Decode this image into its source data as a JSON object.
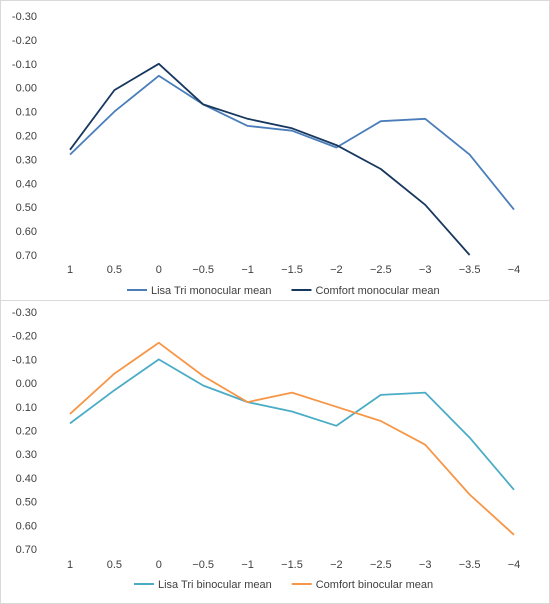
{
  "chart_data": [
    {
      "type": "line",
      "title": "",
      "xlabel": "",
      "ylabel": "",
      "categories": [
        "1",
        "0.5",
        "0",
        "−0.5",
        "−1",
        "−1.5",
        "−2",
        "−2.5",
        "−3",
        "−3.5",
        "−4"
      ],
      "y_ticks": [
        "-0.30",
        "-0.20",
        "-0.10",
        "0.00",
        "0.10",
        "0.20",
        "0.30",
        "0.40",
        "0.50",
        "0.60",
        "0.70"
      ],
      "ylim": [
        -0.3,
        0.7
      ],
      "y_inverted": true,
      "grid": false,
      "legend_position": "bottom",
      "series": [
        {
          "name": "Lisa Tri monocular mean",
          "color": "#4a7ebb",
          "values": [
            0.28,
            0.1,
            -0.05,
            0.07,
            0.16,
            0.18,
            0.25,
            0.14,
            0.13,
            0.28,
            0.51
          ]
        },
        {
          "name": "Comfort monocular mean",
          "color": "#17375e",
          "values": [
            0.26,
            0.01,
            -0.1,
            0.07,
            0.13,
            0.17,
            0.24,
            0.34,
            0.49,
            0.7,
            null
          ]
        }
      ]
    },
    {
      "type": "line",
      "title": "",
      "xlabel": "",
      "ylabel": "",
      "categories": [
        "1",
        "0.5",
        "0",
        "−0.5",
        "−1",
        "−1.5",
        "−2",
        "−2.5",
        "−3",
        "−3.5",
        "−4"
      ],
      "y_ticks": [
        "-0.30",
        "-0.20",
        "-0.10",
        "0.00",
        "0.10",
        "0.20",
        "0.30",
        "0.40",
        "0.50",
        "0.60",
        "0.70"
      ],
      "ylim": [
        -0.3,
        0.7
      ],
      "y_inverted": true,
      "grid": false,
      "legend_position": "bottom",
      "series": [
        {
          "name": "Lisa Tri binocular mean",
          "color": "#4bacc6",
          "values": [
            0.17,
            0.03,
            -0.1,
            0.01,
            0.08,
            0.12,
            0.18,
            0.05,
            0.04,
            0.23,
            0.45
          ]
        },
        {
          "name": "Comfort binocular mean",
          "color": "#f79646",
          "values": [
            0.13,
            -0.04,
            -0.17,
            -0.03,
            0.08,
            0.04,
            0.1,
            0.16,
            0.26,
            0.47,
            0.64
          ]
        }
      ]
    }
  ]
}
